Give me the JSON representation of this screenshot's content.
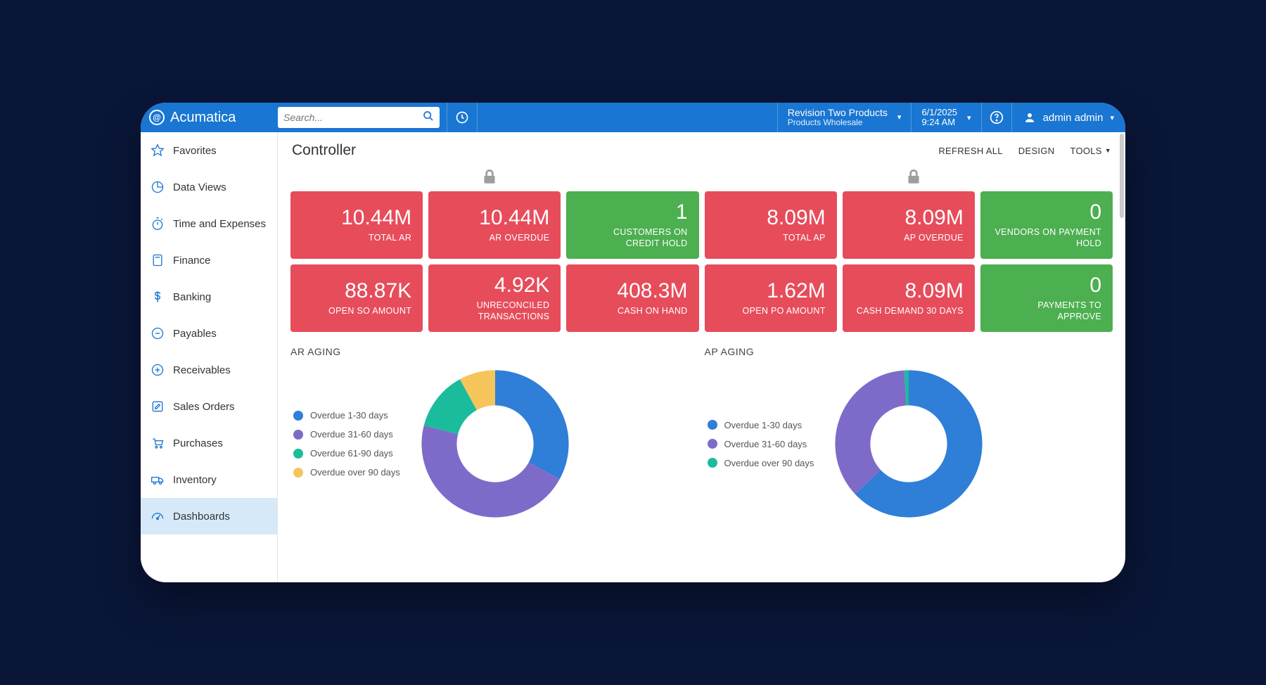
{
  "colors": {
    "topbar": "#1976d2",
    "kpi_red": "#e74c5b",
    "kpi_green": "#4caf50",
    "sidebar_active_bg": "#d6e9f8",
    "icon_blue": "#1976d2",
    "text": "#333333",
    "lock_gray": "#9e9e9e"
  },
  "topbar": {
    "logo_text": "Acumatica",
    "search_placeholder": "Search...",
    "company": {
      "line1": "Revision Two Products",
      "line2": "Products Wholesale"
    },
    "date": {
      "line1": "6/1/2025",
      "line2": "9:24 AM"
    },
    "user_name": "admin admin"
  },
  "sidebar": {
    "items": [
      {
        "key": "favorites",
        "label": "Favorites",
        "icon": "star",
        "active": false
      },
      {
        "key": "dataviews",
        "label": "Data Views",
        "icon": "pie",
        "active": false
      },
      {
        "key": "time",
        "label": "Time and Expenses",
        "icon": "stopwatch",
        "active": false
      },
      {
        "key": "finance",
        "label": "Finance",
        "icon": "calculator",
        "active": false
      },
      {
        "key": "banking",
        "label": "Banking",
        "icon": "dollar",
        "active": false
      },
      {
        "key": "payables",
        "label": "Payables",
        "icon": "minus",
        "active": false
      },
      {
        "key": "receivables",
        "label": "Receivables",
        "icon": "plus",
        "active": false
      },
      {
        "key": "sales",
        "label": "Sales Orders",
        "icon": "pencil",
        "active": false
      },
      {
        "key": "purchases",
        "label": "Purchases",
        "icon": "cart",
        "active": false
      },
      {
        "key": "inventory",
        "label": "Inventory",
        "icon": "truck",
        "active": false
      },
      {
        "key": "dashboards",
        "label": "Dashboards",
        "icon": "gauge",
        "active": true
      }
    ]
  },
  "page": {
    "title": "Controller",
    "actions": {
      "refresh": "REFRESH ALL",
      "design": "DESIGN",
      "tools": "TOOLS"
    }
  },
  "kpis": {
    "row1": [
      {
        "value": "10.44M",
        "label": "TOTAL AR",
        "color": "#e74c5b"
      },
      {
        "value": "10.44M",
        "label": "AR OVERDUE",
        "color": "#e74c5b"
      },
      {
        "value": "1",
        "label": "CUSTOMERS ON CREDIT HOLD",
        "color": "#4caf50"
      },
      {
        "value": "8.09M",
        "label": "TOTAL AP",
        "color": "#e74c5b"
      },
      {
        "value": "8.09M",
        "label": "AP OVERDUE",
        "color": "#e74c5b"
      },
      {
        "value": "0",
        "label": "VENDORS ON PAYMENT HOLD",
        "color": "#4caf50"
      }
    ],
    "row2": [
      {
        "value": "88.87K",
        "label": "OPEN SO AMOUNT",
        "color": "#e74c5b"
      },
      {
        "value": "4.92K",
        "label": "UNRECONCILED TRANSACTIONS",
        "color": "#e74c5b"
      },
      {
        "value": "408.3M",
        "label": "CASH ON HAND",
        "color": "#e74c5b"
      },
      {
        "value": "1.62M",
        "label": "OPEN PO AMOUNT",
        "color": "#e74c5b"
      },
      {
        "value": "8.09M",
        "label": "CASH DEMAND 30 DAYS",
        "color": "#e74c5b"
      },
      {
        "value": "0",
        "label": "PAYMENTS TO APPROVE",
        "color": "#4caf50"
      }
    ]
  },
  "charts": {
    "ar": {
      "title": "AR AGING",
      "type": "donut",
      "inner_radius_pct": 33,
      "background_color": "#ffffff",
      "legend_fontsize": 13,
      "legend": [
        {
          "label": "Overdue 1-30 days",
          "color": "#2f7ed8"
        },
        {
          "label": "Overdue 31-60 days",
          "color": "#7e6bc9"
        },
        {
          "label": "Overdue 61-90 days",
          "color": "#1abc9c"
        },
        {
          "label": "Overdue over 90 days",
          "color": "#f5c55b"
        }
      ],
      "slices": [
        {
          "label": "Overdue 1-30 days",
          "pct": 33,
          "color": "#2f7ed8"
        },
        {
          "label": "Overdue 31-60 days",
          "pct": 46,
          "color": "#7e6bc9"
        },
        {
          "label": "Overdue 61-90 days",
          "pct": 13,
          "color": "#1abc9c"
        },
        {
          "label": "Overdue over 90 days",
          "pct": 8,
          "color": "#f5c55b"
        }
      ]
    },
    "ap": {
      "title": "AP AGING",
      "type": "donut",
      "inner_radius_pct": 33,
      "background_color": "#ffffff",
      "legend_fontsize": 13,
      "legend": [
        {
          "label": "Overdue 1-30 days",
          "color": "#2f7ed8"
        },
        {
          "label": "Overdue 31-60 days",
          "color": "#7e6bc9"
        },
        {
          "label": "Overdue over 90 days",
          "color": "#1abc9c"
        }
      ],
      "slices": [
        {
          "label": "Overdue 1-30 days",
          "pct": 63,
          "color": "#2f7ed8"
        },
        {
          "label": "Overdue 31-60 days",
          "pct": 36,
          "color": "#7e6bc9"
        },
        {
          "label": "Overdue over 90 days",
          "pct": 1,
          "color": "#1abc9c"
        }
      ]
    }
  }
}
